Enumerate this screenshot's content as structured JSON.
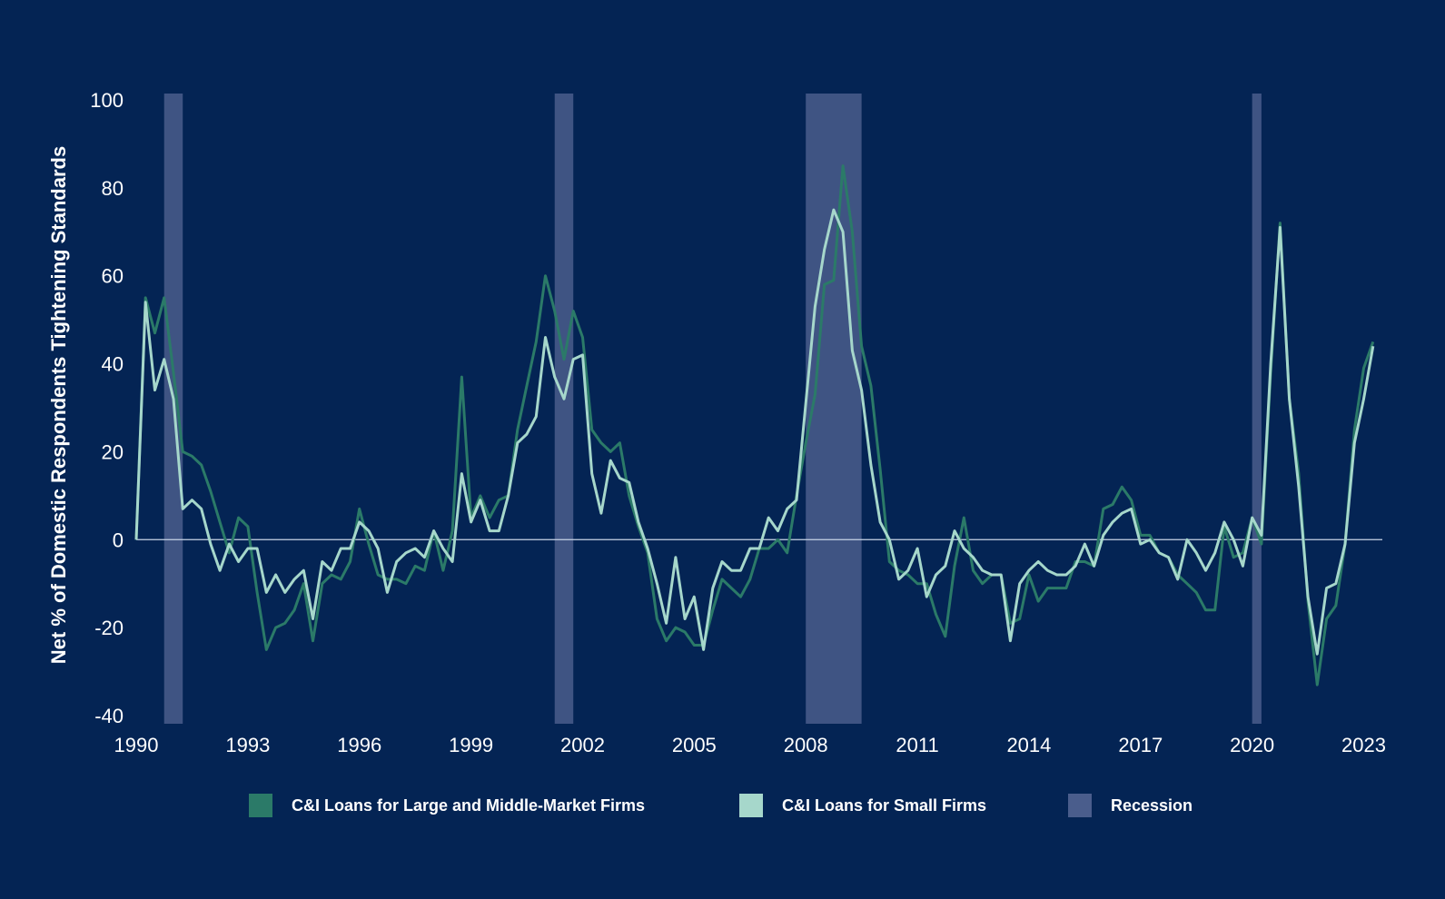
{
  "chart_data": {
    "type": "line",
    "title": "",
    "xlabel": "",
    "ylabel": "Net % of Domestic Respondents Tightening Standards",
    "xlim": [
      1990.0,
      2023.5
    ],
    "ylim": [
      -40,
      100
    ],
    "x_ticks": [
      "1990",
      "1993",
      "1996",
      "1999",
      "2002",
      "2005",
      "2008",
      "2011",
      "2014",
      "2017",
      "2020",
      "2023"
    ],
    "y_ticks": [
      "100",
      "80",
      "60",
      "40",
      "20",
      "0",
      "-20",
      "-40"
    ],
    "x_start": 1990.0,
    "x_step": 0.25,
    "recessions": [
      [
        1990.75,
        1991.25
      ],
      [
        2001.25,
        2001.75
      ],
      [
        2008.0,
        2009.5
      ],
      [
        2020.0,
        2020.25
      ]
    ],
    "colors": {
      "background": "#042454",
      "large": "#2b7a68",
      "small": "#a6d7cb",
      "recession": "#4a5d8c",
      "zero_line": "#c8d4e6"
    },
    "series": [
      {
        "name": "C&I Loans for Large and Middle-Market Firms",
        "values": [
          0,
          55,
          47,
          55,
          38,
          20,
          19,
          17,
          11,
          4,
          -3,
          5,
          3,
          -12,
          -25,
          -20,
          -19,
          -16,
          -10,
          -23,
          -10,
          -8,
          -9,
          -5,
          7,
          -1,
          -8,
          -9,
          -9,
          -10,
          -6,
          -7,
          2,
          -7,
          2,
          37,
          5,
          10,
          5,
          9,
          10,
          25,
          35,
          45,
          60,
          52,
          41,
          52,
          46,
          25,
          22,
          20,
          22,
          10,
          3,
          -3,
          -18,
          -23,
          -20,
          -21,
          -24,
          -24,
          -16,
          -9,
          -11,
          -13,
          -9,
          -2,
          -2,
          0,
          -3,
          10,
          22,
          33,
          58,
          59,
          85,
          70,
          44,
          35,
          16,
          -5,
          -7,
          -8,
          -10,
          -10,
          -17,
          -22,
          -6,
          5,
          -7,
          -10,
          -8,
          -8,
          -19,
          -18,
          -8,
          -14,
          -11,
          -11,
          -11,
          -5,
          -5,
          -6,
          7,
          8,
          12,
          9,
          1,
          1,
          -3,
          -4,
          -8,
          -10,
          -12,
          -16,
          -16,
          3,
          -4,
          -3,
          5,
          -1,
          38,
          72,
          32,
          15,
          -14,
          -33,
          -18,
          -15,
          -1,
          25,
          39,
          45
        ]
      },
      {
        "name": "C&I Loans for Small Firms",
        "values": [
          0,
          54,
          34,
          41,
          32,
          7,
          9,
          7,
          -1,
          -7,
          -1,
          -5,
          -2,
          -2,
          -12,
          -8,
          -12,
          -9,
          -7,
          -18,
          -5,
          -7,
          -2,
          -2,
          4,
          2,
          -2,
          -12,
          -5,
          -3,
          -2,
          -4,
          2,
          -2,
          -5,
          15,
          4,
          9,
          2,
          2,
          10,
          22,
          24,
          28,
          46,
          37,
          32,
          41,
          42,
          15,
          6,
          18,
          14,
          13,
          4,
          -2,
          -10,
          -19,
          -4,
          -18,
          -13,
          -25,
          -11,
          -5,
          -7,
          -7,
          -2,
          -2,
          5,
          2,
          7,
          9,
          31,
          53,
          66,
          75,
          70,
          43,
          34,
          17,
          4,
          0,
          -9,
          -7,
          -2,
          -13,
          -8,
          -6,
          2,
          -2,
          -4,
          -7,
          -8,
          -8,
          -23,
          -10,
          -7,
          -5,
          -7,
          -8,
          -8,
          -6,
          -1,
          -6,
          1,
          4,
          6,
          7,
          -1,
          0,
          -3,
          -4,
          -9,
          0,
          -3,
          -7,
          -3,
          4,
          0,
          -6,
          5,
          1,
          40,
          71,
          32,
          12,
          -13,
          -26,
          -11,
          -10,
          -1,
          22,
          32,
          44
        ]
      },
      {
        "name": "Recession"
      }
    ]
  }
}
